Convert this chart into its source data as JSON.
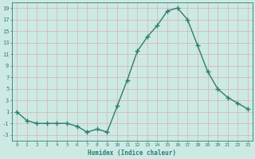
{
  "x": [
    0,
    1,
    2,
    3,
    4,
    5,
    6,
    7,
    8,
    9,
    10,
    11,
    12,
    13,
    14,
    15,
    16,
    17,
    18,
    19,
    20,
    21,
    22,
    23
  ],
  "y": [
    1,
    -0.5,
    -1,
    -1,
    -1,
    -1,
    -1.5,
    -2.5,
    -2,
    -2.5,
    2,
    6.5,
    11.5,
    14,
    16,
    18.5,
    19,
    17,
    12.5,
    8,
    5,
    3.5,
    2.5,
    1.5
  ],
  "line_color": "#2e7d6e",
  "marker": "D",
  "marker_size": 2.2,
  "bg_color": "#cce9e4",
  "grid_color": "#b0d8d2",
  "xlabel": "Humidex (Indice chaleur)",
  "ylim": [
    -4,
    20
  ],
  "xlim": [
    -0.5,
    23.5
  ],
  "yticks": [
    -3,
    -1,
    1,
    3,
    5,
    7,
    9,
    11,
    13,
    15,
    17,
    19
  ],
  "xticks": [
    0,
    1,
    2,
    3,
    4,
    5,
    6,
    7,
    8,
    9,
    10,
    11,
    12,
    13,
    14,
    15,
    16,
    17,
    18,
    19,
    20,
    21,
    22,
    23
  ],
  "tick_label_color": "#2e7d6e",
  "label_color": "#2e7d6e",
  "linewidth": 1.0
}
